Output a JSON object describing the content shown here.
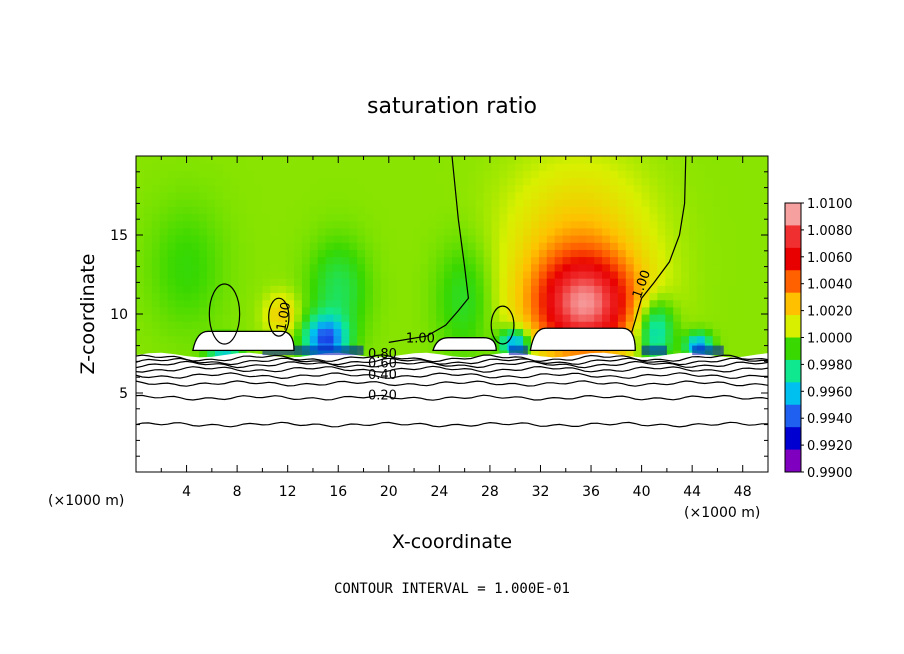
{
  "chart_data": {
    "type": "heatmap",
    "title": "saturation ratio",
    "xlabel": "X-coordinate",
    "ylabel": "Z-coordinate",
    "x_unit_left": "(×1000 m)",
    "x_unit_right": "(×1000 m)",
    "footer": "CONTOUR INTERVAL = 1.000E-01",
    "xlim": [
      0,
      50
    ],
    "ylim": [
      0,
      20
    ],
    "x_ticks": [
      {
        "v": 4,
        "label": "4"
      },
      {
        "v": 8,
        "label": "8"
      },
      {
        "v": 12,
        "label": "12"
      },
      {
        "v": 16,
        "label": "16"
      },
      {
        "v": 20,
        "label": "20"
      },
      {
        "v": 24,
        "label": "24"
      },
      {
        "v": 28,
        "label": "28"
      },
      {
        "v": 32,
        "label": "32"
      },
      {
        "v": 36,
        "label": "36"
      },
      {
        "v": 40,
        "label": "40"
      },
      {
        "v": 44,
        "label": "44"
      },
      {
        "v": 48,
        "label": "48"
      }
    ],
    "y_ticks": [
      {
        "v": 5,
        "label": "5"
      },
      {
        "v": 10,
        "label": "10"
      },
      {
        "v": 15,
        "label": "15"
      }
    ],
    "colorbar": {
      "min": 0.99,
      "max": 1.01,
      "labels": [
        "1.0100",
        "1.0080",
        "1.0060",
        "1.0040",
        "1.0020",
        "1.0000",
        "0.9980",
        "0.9960",
        "0.9940",
        "0.9920",
        "0.9900"
      ],
      "colors": [
        "#f7a0a0",
        "#f03030",
        "#e80000",
        "#ff6000",
        "#ffc000",
        "#d8f000",
        "#38d800",
        "#10e890",
        "#00c0f0",
        "#2060f0",
        "#0000d0",
        "#8000c0"
      ]
    },
    "contour_labels": [
      {
        "x": 19.5,
        "y": 7.2,
        "text": "0.80"
      },
      {
        "x": 19.5,
        "y": 6.6,
        "text": "0.60"
      },
      {
        "x": 19.5,
        "y": 5.9,
        "text": "0.40"
      },
      {
        "x": 19.5,
        "y": 4.6,
        "text": "0.20"
      },
      {
        "x": 22.5,
        "y": 8.2,
        "text": "1.00"
      },
      {
        "x": 40.3,
        "y": 11.8,
        "text": "1.00"
      },
      {
        "x": 12.0,
        "y": 9.8,
        "text": "1.00"
      }
    ],
    "background_value": 1.0,
    "anomalies": [
      {
        "x": 35.5,
        "y": 10.5,
        "sx": 4.2,
        "sy": 3.2,
        "value": 1.0085
      },
      {
        "x": 35.0,
        "y": 14.5,
        "sx": 5.5,
        "sy": 5.0,
        "value": 1.0025
      },
      {
        "x": 11.5,
        "y": 10.0,
        "sx": 1.3,
        "sy": 1.3,
        "value": 1.0022
      },
      {
        "x": 15.0,
        "y": 8.4,
        "sx": 1.6,
        "sy": 1.4,
        "value": 0.9935
      },
      {
        "x": 16.0,
        "y": 11.5,
        "sx": 2.2,
        "sy": 3.0,
        "value": 0.998
      },
      {
        "x": 30.0,
        "y": 8.2,
        "sx": 1.2,
        "sy": 0.9,
        "value": 0.994
      },
      {
        "x": 41.0,
        "y": 9.0,
        "sx": 1.5,
        "sy": 2.0,
        "value": 0.9955
      },
      {
        "x": 44.5,
        "y": 8.0,
        "sx": 1.0,
        "sy": 0.8,
        "value": 0.9945
      },
      {
        "x": 7.0,
        "y": 7.8,
        "sx": 1.3,
        "sy": 0.7,
        "value": 0.9955
      },
      {
        "x": 26.0,
        "y": 11.0,
        "sx": 2.2,
        "sy": 3.5,
        "value": 0.9985
      },
      {
        "x": 4.0,
        "y": 13.0,
        "sx": 3.0,
        "sy": 4.0,
        "value": 0.999
      }
    ]
  }
}
